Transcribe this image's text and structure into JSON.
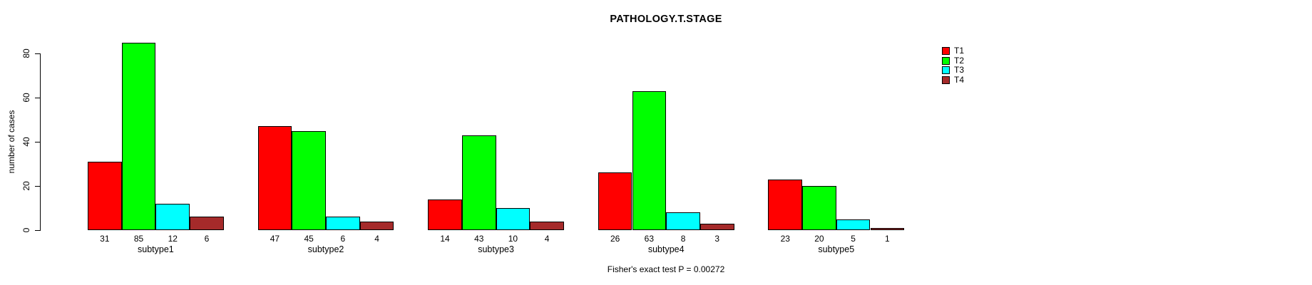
{
  "chart_data": {
    "type": "bar",
    "title": "PATHOLOGY.T.STAGE",
    "ylabel": "number of cases",
    "xlabel": "",
    "categories": [
      "subtype1",
      "subtype2",
      "subtype3",
      "subtype4",
      "subtype5"
    ],
    "series": [
      {
        "name": "T1",
        "color": "#FF0000",
        "values": [
          31,
          47,
          14,
          26,
          23
        ]
      },
      {
        "name": "T2",
        "color": "#00FF00",
        "values": [
          85,
          45,
          43,
          63,
          20
        ]
      },
      {
        "name": "T3",
        "color": "#00FFFF",
        "values": [
          12,
          6,
          10,
          8,
          5
        ]
      },
      {
        "name": "T4",
        "color": "#A52A2A",
        "values": [
          6,
          4,
          4,
          3,
          1
        ]
      }
    ],
    "yticks": [
      0,
      20,
      40,
      60,
      80
    ],
    "ylim": [
      0,
      85
    ],
    "grid": false,
    "bar_value_labels_shown": true,
    "legend_position": "top-right",
    "annotation": "Fisher's exact test P = 0.00272"
  }
}
